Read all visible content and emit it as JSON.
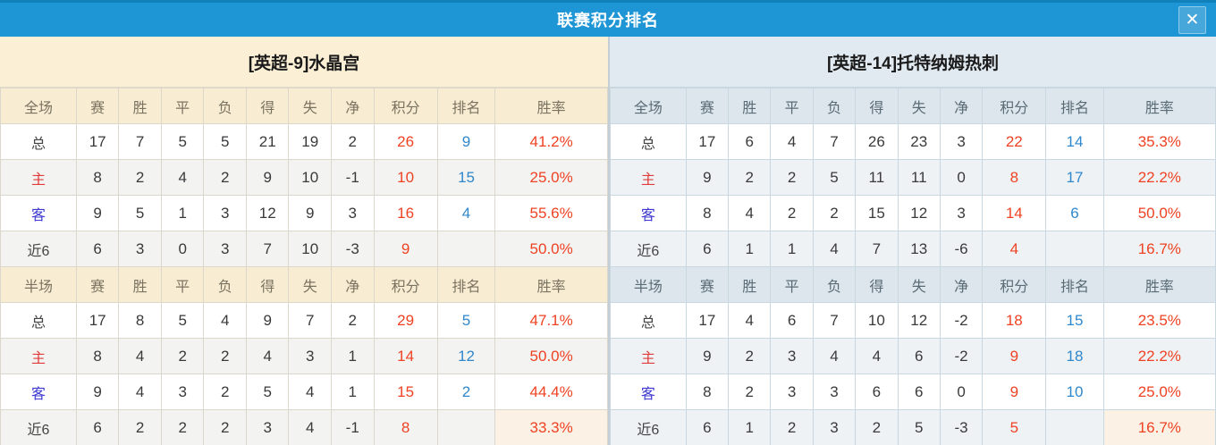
{
  "window": {
    "title": "联赛积分排名",
    "close_icon_glyph": "✕"
  },
  "colors": {
    "titlebar": "#1e96d5",
    "left_header_bg": "#fbf0d5",
    "right_header_bg": "#e0eaf0",
    "points_red": "#ee4223",
    "rank_blue": "#2f87cc",
    "home_red": "#e13c3c",
    "away_blue": "#3c38cf"
  },
  "stat_columns": [
    "赛",
    "胜",
    "平",
    "负",
    "得",
    "失",
    "净",
    "积分",
    "排名",
    "胜率"
  ],
  "teams": [
    {
      "name": "[英超-9]水晶宫",
      "sections": [
        {
          "scope_label": "全场",
          "rows": [
            {
              "label": "总",
              "label_type": "total",
              "values": [
                "17",
                "7",
                "5",
                "5",
                "21",
                "19",
                "2",
                "26",
                "9",
                "41.2%"
              ]
            },
            {
              "label": "主",
              "label_type": "home",
              "values": [
                "8",
                "2",
                "4",
                "2",
                "9",
                "10",
                "-1",
                "10",
                "15",
                "25.0%"
              ]
            },
            {
              "label": "客",
              "label_type": "away",
              "values": [
                "9",
                "5",
                "1",
                "3",
                "12",
                "9",
                "3",
                "16",
                "4",
                "55.6%"
              ]
            },
            {
              "label": "近6",
              "label_type": "recent",
              "values": [
                "6",
                "3",
                "0",
                "3",
                "7",
                "10",
                "-3",
                "9",
                "",
                "50.0%"
              ]
            }
          ]
        },
        {
          "scope_label": "半场",
          "rows": [
            {
              "label": "总",
              "label_type": "total",
              "values": [
                "17",
                "8",
                "5",
                "4",
                "9",
                "7",
                "2",
                "29",
                "5",
                "47.1%"
              ]
            },
            {
              "label": "主",
              "label_type": "home",
              "values": [
                "8",
                "4",
                "2",
                "2",
                "4",
                "3",
                "1",
                "14",
                "12",
                "50.0%"
              ]
            },
            {
              "label": "客",
              "label_type": "away",
              "values": [
                "9",
                "4",
                "3",
                "2",
                "5",
                "4",
                "1",
                "15",
                "2",
                "44.4%"
              ]
            },
            {
              "label": "近6",
              "label_type": "recent",
              "values": [
                "6",
                "2",
                "2",
                "2",
                "3",
                "4",
                "-1",
                "8",
                "",
                "33.3%"
              ],
              "rate_highlight": true
            }
          ]
        }
      ]
    },
    {
      "name": "[英超-14]托特纳姆热刺",
      "sections": [
        {
          "scope_label": "全场",
          "rows": [
            {
              "label": "总",
              "label_type": "total",
              "values": [
                "17",
                "6",
                "4",
                "7",
                "26",
                "23",
                "3",
                "22",
                "14",
                "35.3%"
              ]
            },
            {
              "label": "主",
              "label_type": "home",
              "values": [
                "9",
                "2",
                "2",
                "5",
                "11",
                "11",
                "0",
                "8",
                "17",
                "22.2%"
              ]
            },
            {
              "label": "客",
              "label_type": "away",
              "values": [
                "8",
                "4",
                "2",
                "2",
                "15",
                "12",
                "3",
                "14",
                "6",
                "50.0%"
              ]
            },
            {
              "label": "近6",
              "label_type": "recent",
              "values": [
                "6",
                "1",
                "1",
                "4",
                "7",
                "13",
                "-6",
                "4",
                "",
                "16.7%"
              ]
            }
          ]
        },
        {
          "scope_label": "半场",
          "rows": [
            {
              "label": "总",
              "label_type": "total",
              "values": [
                "17",
                "4",
                "6",
                "7",
                "10",
                "12",
                "-2",
                "18",
                "15",
                "23.5%"
              ]
            },
            {
              "label": "主",
              "label_type": "home",
              "values": [
                "9",
                "2",
                "3",
                "4",
                "4",
                "6",
                "-2",
                "9",
                "18",
                "22.2%"
              ]
            },
            {
              "label": "客",
              "label_type": "away",
              "values": [
                "8",
                "2",
                "3",
                "3",
                "6",
                "6",
                "0",
                "9",
                "10",
                "25.0%"
              ]
            },
            {
              "label": "近6",
              "label_type": "recent",
              "values": [
                "6",
                "1",
                "2",
                "3",
                "2",
                "5",
                "-3",
                "5",
                "",
                "16.7%"
              ],
              "rate_highlight": true
            }
          ]
        }
      ]
    }
  ]
}
